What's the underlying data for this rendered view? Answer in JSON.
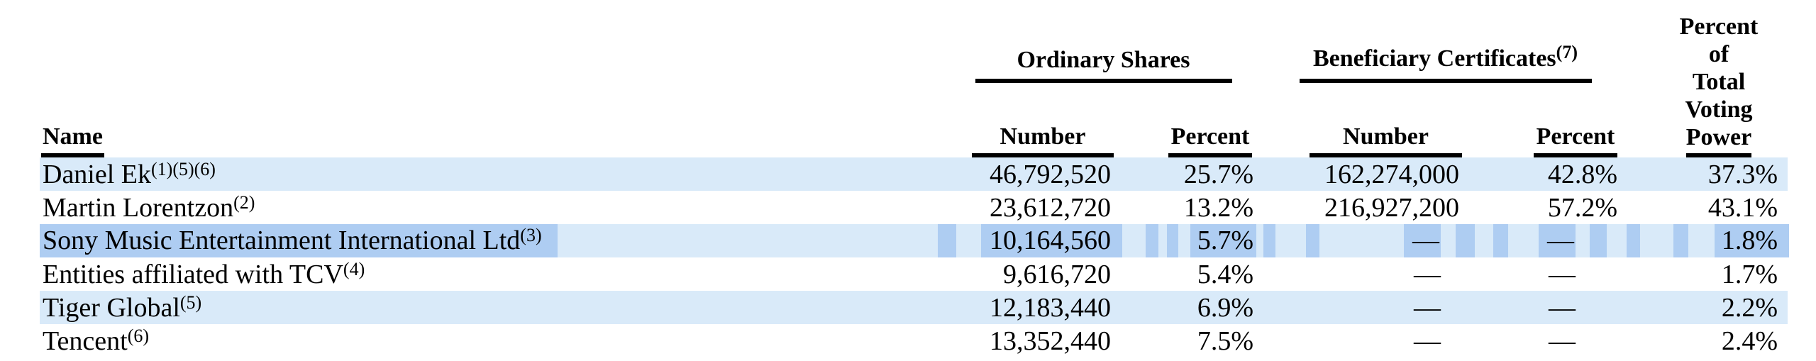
{
  "colors": {
    "row_stripe": "#d9eaf9",
    "text_selection": "#aecdf2",
    "text": "#000000",
    "rule": "#000000"
  },
  "table": {
    "name_header": "Name",
    "groups": {
      "ordinary": {
        "label": "Ordinary Shares",
        "footnote": ""
      },
      "beneficiary": {
        "label": "Beneficiary Certificates",
        "footnote": "(7)"
      }
    },
    "subheaders": {
      "number": "Number",
      "percent": "Percent"
    },
    "voting_header_lines": [
      "Percent",
      "of",
      "Total",
      "Voting",
      "Power"
    ],
    "rows": [
      {
        "name": "Daniel Ek",
        "footnotes": "(1)(5)(6)",
        "ordinary_number": "46,792,520",
        "ordinary_percent": "25.7%",
        "beneficiary_number": "162,274,000",
        "beneficiary_percent": "42.8%",
        "voting_power": "37.3%"
      },
      {
        "name": "Martin Lorentzon",
        "footnotes": "(2)",
        "ordinary_number": "23,612,720",
        "ordinary_percent": "13.2%",
        "beneficiary_number": "216,927,200",
        "beneficiary_percent": "57.2%",
        "voting_power": "43.1%"
      },
      {
        "name": "Sony Music Entertainment International Ltd",
        "footnotes": "(3)",
        "ordinary_number": "10,164,560",
        "ordinary_percent": "5.7%",
        "beneficiary_number": "—",
        "beneficiary_percent": "—",
        "voting_power": "1.8%"
      },
      {
        "name": "Entities affiliated with TCV",
        "footnotes": "(4)",
        "ordinary_number": "9,616,720",
        "ordinary_percent": "5.4%",
        "beneficiary_number": "—",
        "beneficiary_percent": "—",
        "voting_power": "1.7%"
      },
      {
        "name": "Tiger Global",
        "footnotes": "(5)",
        "ordinary_number": "12,183,440",
        "ordinary_percent": "6.9%",
        "beneficiary_number": "—",
        "beneficiary_percent": "—",
        "voting_power": "2.2%"
      },
      {
        "name": "Tencent",
        "footnotes": "(6)",
        "ordinary_number": "13,352,440",
        "ordinary_percent": "7.5%",
        "beneficiary_number": "—",
        "beneficiary_percent": "—",
        "voting_power": "2.4%"
      }
    ]
  }
}
